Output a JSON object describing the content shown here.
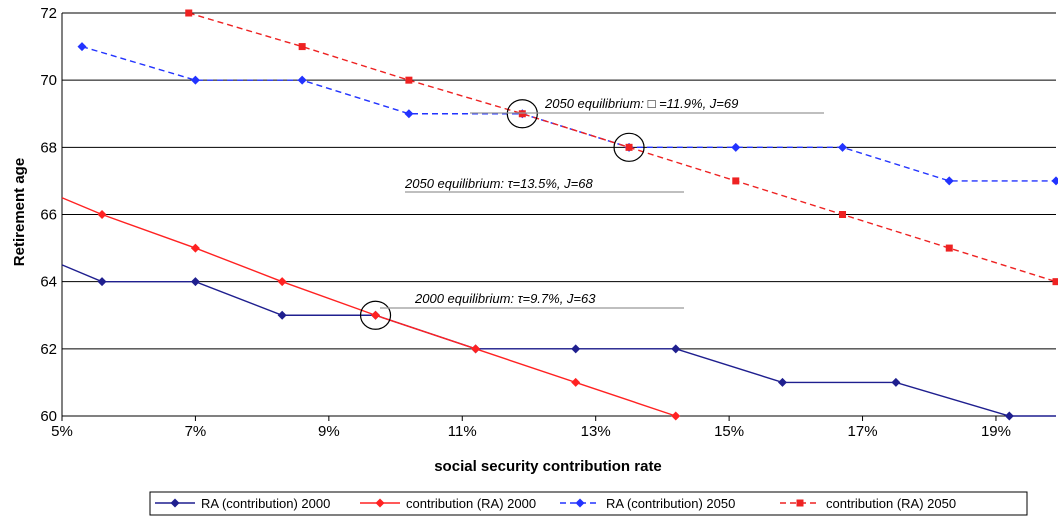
{
  "chart_data": {
    "type": "line",
    "xlabel": "social security contribution rate",
    "ylabel": "Retirement age",
    "xlim": [
      5,
      19.9
    ],
    "ylim": [
      60,
      72
    ],
    "xticks": [
      "5%",
      "7%",
      "9%",
      "11%",
      "13%",
      "15%",
      "17%",
      "19%"
    ],
    "xtick_values": [
      5,
      7,
      9,
      11,
      13,
      15,
      17,
      19
    ],
    "yticks": [
      60,
      62,
      64,
      66,
      68,
      70,
      72
    ],
    "grid": "horizontal",
    "legend_position": "bottom",
    "series": [
      {
        "name": "RA (contribution) 2000",
        "color": "#1f1f8f",
        "dash": "solid",
        "marker": "diamond",
        "points": [
          [
            5,
            64.5
          ],
          [
            5.6,
            64
          ],
          [
            7,
            64
          ],
          [
            8.3,
            63
          ],
          [
            9.7,
            63
          ],
          [
            11.2,
            62
          ],
          [
            12.7,
            62
          ],
          [
            14.2,
            62
          ],
          [
            15.8,
            61
          ],
          [
            17.5,
            61
          ],
          [
            19.2,
            60
          ],
          [
            19.9,
            60
          ]
        ],
        "markers": [
          [
            5.6,
            64
          ],
          [
            7,
            64
          ],
          [
            8.3,
            63
          ],
          [
            9.7,
            63
          ],
          [
            11.2,
            62
          ],
          [
            12.7,
            62
          ],
          [
            14.2,
            62
          ],
          [
            15.8,
            61
          ],
          [
            17.5,
            61
          ],
          [
            19.2,
            60
          ]
        ]
      },
      {
        "name": "contribution (RA) 2000",
        "color": "#ff2222",
        "dash": "solid",
        "marker": "diamond",
        "points": [
          [
            5,
            66.5
          ],
          [
            5.6,
            66
          ],
          [
            7,
            65
          ],
          [
            8.3,
            64
          ],
          [
            9.7,
            63
          ],
          [
            11.2,
            62
          ],
          [
            12.7,
            61
          ],
          [
            14.2,
            60
          ]
        ],
        "markers": [
          [
            5.6,
            66
          ],
          [
            7,
            65
          ],
          [
            8.3,
            64
          ],
          [
            9.7,
            63
          ],
          [
            11.2,
            62
          ],
          [
            12.7,
            61
          ],
          [
            14.2,
            60
          ]
        ]
      },
      {
        "name": "RA (contribution) 2050",
        "color": "#2233ff",
        "dash": "dashed",
        "marker": "diamond",
        "points": [
          [
            5.3,
            71
          ],
          [
            7,
            70
          ],
          [
            8.6,
            70
          ],
          [
            10.2,
            69
          ],
          [
            11.9,
            69
          ],
          [
            13.5,
            68
          ],
          [
            15.1,
            68
          ],
          [
            16.7,
            68
          ],
          [
            18.3,
            67
          ],
          [
            19.9,
            67
          ]
        ],
        "markers": [
          [
            5.3,
            71
          ],
          [
            7,
            70
          ],
          [
            8.6,
            70
          ],
          [
            10.2,
            69
          ],
          [
            11.9,
            69
          ],
          [
            13.5,
            68
          ],
          [
            15.1,
            68
          ],
          [
            16.7,
            68
          ],
          [
            18.3,
            67
          ],
          [
            19.9,
            67
          ]
        ]
      },
      {
        "name": "contribution (RA) 2050",
        "color": "#ee2222",
        "dash": "dashed",
        "marker": "square",
        "points": [
          [
            6.9,
            72
          ],
          [
            8.6,
            71
          ],
          [
            10.2,
            70
          ],
          [
            11.9,
            69
          ],
          [
            13.5,
            68
          ],
          [
            15.1,
            67
          ],
          [
            16.7,
            66
          ],
          [
            18.3,
            65
          ],
          [
            19.9,
            64
          ]
        ],
        "markers": [
          [
            6.9,
            72
          ],
          [
            8.6,
            71
          ],
          [
            10.2,
            70
          ],
          [
            11.9,
            69
          ],
          [
            13.5,
            68
          ],
          [
            15.1,
            67
          ],
          [
            16.7,
            66
          ],
          [
            18.3,
            65
          ],
          [
            19.9,
            64
          ]
        ]
      }
    ],
    "annotations": [
      {
        "text": "2050 equilibrium: □ =11.9%, J=69",
        "anchor_x": 11.9,
        "anchor_y": 69
      },
      {
        "text": "2050 equilibrium: τ=13.5%, J=68",
        "anchor_x": 13.5,
        "anchor_y": 68
      },
      {
        "text": "2000 equilibrium: τ=9.7%, J=63",
        "anchor_x": 9.7,
        "anchor_y": 63
      }
    ]
  }
}
